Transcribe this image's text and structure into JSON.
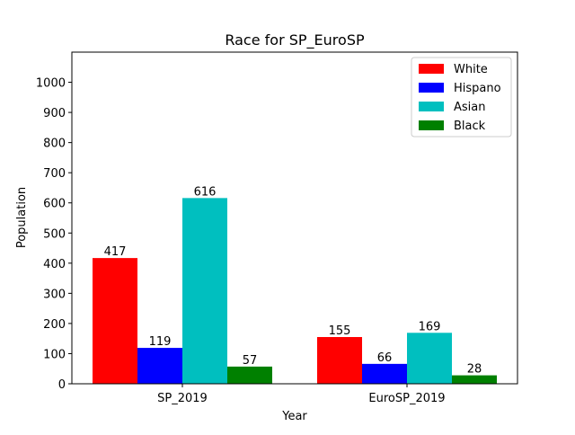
{
  "chart_data": {
    "type": "bar",
    "title": "Race for SP_EuroSP",
    "xlabel": "Year",
    "ylabel": "Population",
    "categories": [
      "SP_2019",
      "EuroSP_2019"
    ],
    "series": [
      {
        "name": "White",
        "values": [
          417,
          155
        ],
        "color": "#ff0000"
      },
      {
        "name": "Hispano",
        "values": [
          119,
          66
        ],
        "color": "#0000ff"
      },
      {
        "name": "Asian",
        "values": [
          616,
          169
        ],
        "color": "#00bfbf"
      },
      {
        "name": "Black",
        "values": [
          57,
          28
        ],
        "color": "#008000"
      }
    ],
    "ylim": [
      0,
      1100
    ],
    "yticks": [
      0,
      100,
      200,
      300,
      400,
      500,
      600,
      700,
      800,
      900,
      1000
    ],
    "grid": false,
    "legend_position": "top-right"
  }
}
